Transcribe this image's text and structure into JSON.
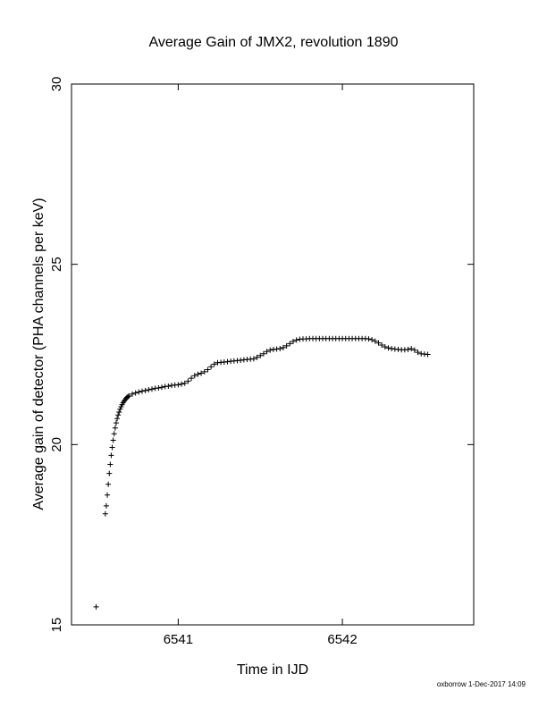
{
  "chart_data": {
    "type": "scatter",
    "title": "Average Gain of JMX2, revolution 1890",
    "xlabel": "Time in IJD",
    "ylabel": "Average gain of detector (PHA channels per keV)",
    "xlim": [
      6540.35,
      6542.8
    ],
    "ylim": [
      15,
      30
    ],
    "x_ticks": [
      6541,
      6542
    ],
    "y_ticks": [
      15,
      20,
      25,
      30
    ],
    "grid": false,
    "marker": "plus",
    "footer": "oxborrow 1-Dec-2017 14:09",
    "series": [
      {
        "points": [
          [
            6540.5,
            15.5
          ],
          [
            6540.556,
            18.08
          ],
          [
            6540.562,
            18.3
          ],
          [
            6540.568,
            18.6
          ],
          [
            6540.574,
            18.9
          ],
          [
            6540.58,
            19.2
          ],
          [
            6540.586,
            19.45
          ],
          [
            6540.592,
            19.7
          ],
          [
            6540.598,
            19.92
          ],
          [
            6540.604,
            20.12
          ],
          [
            6540.61,
            20.3
          ],
          [
            6540.616,
            20.46
          ],
          [
            6540.622,
            20.6
          ],
          [
            6540.628,
            20.72
          ],
          [
            6540.634,
            20.82
          ],
          [
            6540.64,
            20.9
          ],
          [
            6540.646,
            20.98
          ],
          [
            6540.652,
            21.05
          ],
          [
            6540.658,
            21.11
          ],
          [
            6540.664,
            21.16
          ],
          [
            6540.67,
            21.2
          ],
          [
            6540.676,
            21.24
          ],
          [
            6540.682,
            21.28
          ],
          [
            6540.688,
            21.31
          ],
          [
            6540.694,
            21.33
          ],
          [
            6540.7,
            21.35
          ],
          [
            6540.72,
            21.4
          ],
          [
            6540.74,
            21.43
          ],
          [
            6540.76,
            21.46
          ],
          [
            6540.78,
            21.48
          ],
          [
            6540.8,
            21.5
          ],
          [
            6540.82,
            21.52
          ],
          [
            6540.84,
            21.54
          ],
          [
            6540.86,
            21.56
          ],
          [
            6540.88,
            21.57
          ],
          [
            6540.9,
            21.59
          ],
          [
            6540.92,
            21.61
          ],
          [
            6540.94,
            21.62
          ],
          [
            6540.96,
            21.64
          ],
          [
            6540.98,
            21.65
          ],
          [
            6541.0,
            21.66
          ],
          [
            6541.02,
            21.68
          ],
          [
            6541.04,
            21.7
          ],
          [
            6541.06,
            21.76
          ],
          [
            6541.08,
            21.84
          ],
          [
            6541.1,
            21.91
          ],
          [
            6541.12,
            21.95
          ],
          [
            6541.14,
            21.98
          ],
          [
            6541.16,
            22.02
          ],
          [
            6541.18,
            22.08
          ],
          [
            6541.2,
            22.16
          ],
          [
            6541.22,
            22.23
          ],
          [
            6541.24,
            22.27
          ],
          [
            6541.26,
            22.28
          ],
          [
            6541.28,
            22.29
          ],
          [
            6541.3,
            22.3
          ],
          [
            6541.32,
            22.31
          ],
          [
            6541.34,
            22.32
          ],
          [
            6541.36,
            22.33
          ],
          [
            6541.38,
            22.34
          ],
          [
            6541.4,
            22.35
          ],
          [
            6541.42,
            22.36
          ],
          [
            6541.44,
            22.37
          ],
          [
            6541.46,
            22.38
          ],
          [
            6541.48,
            22.42
          ],
          [
            6541.5,
            22.47
          ],
          [
            6541.52,
            22.52
          ],
          [
            6541.54,
            22.58
          ],
          [
            6541.56,
            22.62
          ],
          [
            6541.58,
            22.64
          ],
          [
            6541.6,
            22.65
          ],
          [
            6541.62,
            22.66
          ],
          [
            6541.64,
            22.69
          ],
          [
            6541.66,
            22.74
          ],
          [
            6541.68,
            22.8
          ],
          [
            6541.7,
            22.86
          ],
          [
            6541.72,
            22.9
          ],
          [
            6541.74,
            22.92
          ],
          [
            6541.76,
            22.93
          ],
          [
            6541.78,
            22.93
          ],
          [
            6541.8,
            22.94
          ],
          [
            6541.82,
            22.94
          ],
          [
            6541.84,
            22.94
          ],
          [
            6541.86,
            22.94
          ],
          [
            6541.88,
            22.94
          ],
          [
            6541.9,
            22.94
          ],
          [
            6541.92,
            22.94
          ],
          [
            6541.94,
            22.94
          ],
          [
            6541.96,
            22.94
          ],
          [
            6541.98,
            22.94
          ],
          [
            6542.0,
            22.94
          ],
          [
            6542.02,
            22.94
          ],
          [
            6542.04,
            22.94
          ],
          [
            6542.06,
            22.94
          ],
          [
            6542.08,
            22.94
          ],
          [
            6542.1,
            22.94
          ],
          [
            6542.12,
            22.94
          ],
          [
            6542.14,
            22.94
          ],
          [
            6542.16,
            22.93
          ],
          [
            6542.18,
            22.91
          ],
          [
            6542.2,
            22.87
          ],
          [
            6542.22,
            22.82
          ],
          [
            6542.24,
            22.76
          ],
          [
            6542.26,
            22.71
          ],
          [
            6542.28,
            22.68
          ],
          [
            6542.3,
            22.66
          ],
          [
            6542.32,
            22.65
          ],
          [
            6542.34,
            22.64
          ],
          [
            6542.36,
            22.63
          ],
          [
            6542.38,
            22.63
          ],
          [
            6542.4,
            22.64
          ],
          [
            6542.42,
            22.66
          ],
          [
            6542.44,
            22.62
          ],
          [
            6542.46,
            22.56
          ],
          [
            6542.48,
            22.52
          ],
          [
            6542.5,
            22.51
          ],
          [
            6542.52,
            22.5
          ]
        ]
      }
    ]
  }
}
